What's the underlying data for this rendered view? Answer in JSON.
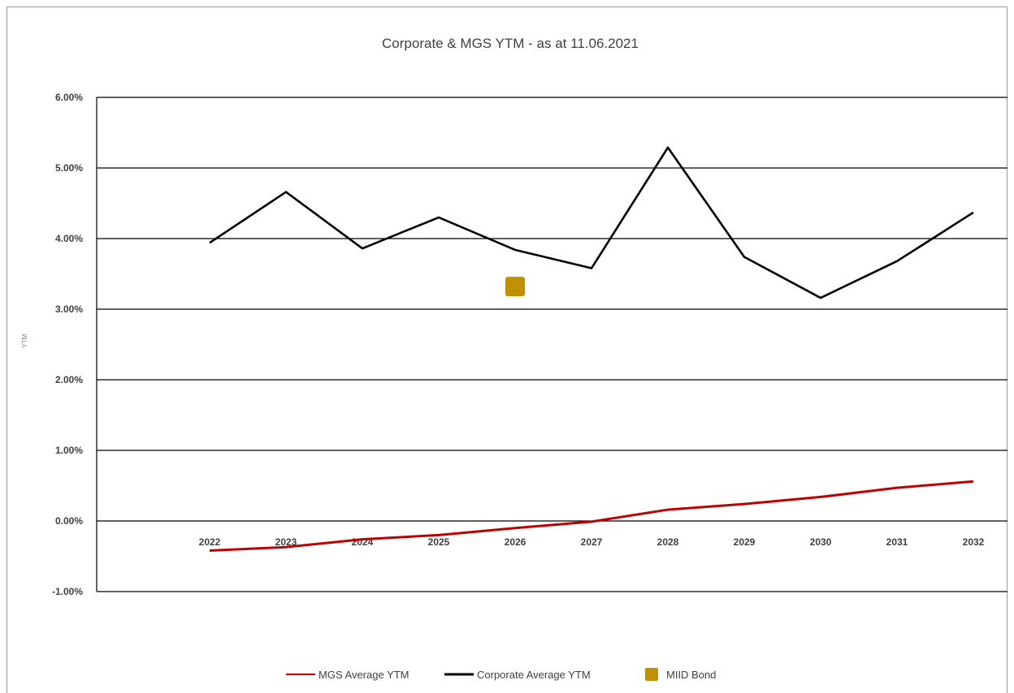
{
  "chart_data": {
    "type": "line",
    "title": "Corporate & MGS YTM - as at 11.06.2021",
    "ylabel": "YTM",
    "xlabel": "",
    "ylim": [
      -1.0,
      6.0
    ],
    "yticks": [
      -1.0,
      0.0,
      1.0,
      2.0,
      3.0,
      4.0,
      5.0,
      6.0
    ],
    "ytick_labels": [
      "-1.00%",
      "0.00%",
      "1.00%",
      "2.00%",
      "3.00%",
      "4.00%",
      "5.00%",
      "6.00%"
    ],
    "categories": [
      "2022",
      "2023",
      "2024",
      "2025",
      "2026",
      "2027",
      "2028",
      "2029",
      "2030",
      "2031",
      "2032"
    ],
    "grid": true,
    "legend_position": "bottom",
    "series": [
      {
        "name": "MGS Average YTM",
        "kind": "line",
        "color": "#c00000",
        "values": [
          -0.42,
          -0.37,
          -0.26,
          -0.2,
          -0.1,
          -0.01,
          0.16,
          0.24,
          0.34,
          0.47,
          0.56
        ]
      },
      {
        "name": "Corporate Average YTM",
        "kind": "line",
        "color": "#000000",
        "values": [
          3.94,
          4.66,
          3.86,
          4.3,
          3.84,
          3.58,
          5.29,
          3.74,
          3.16,
          3.68,
          4.37
        ]
      },
      {
        "name": "MIID Bond",
        "kind": "marker",
        "color": "#bf9000",
        "points": [
          {
            "x": "2026",
            "y": 3.32
          }
        ]
      }
    ]
  }
}
